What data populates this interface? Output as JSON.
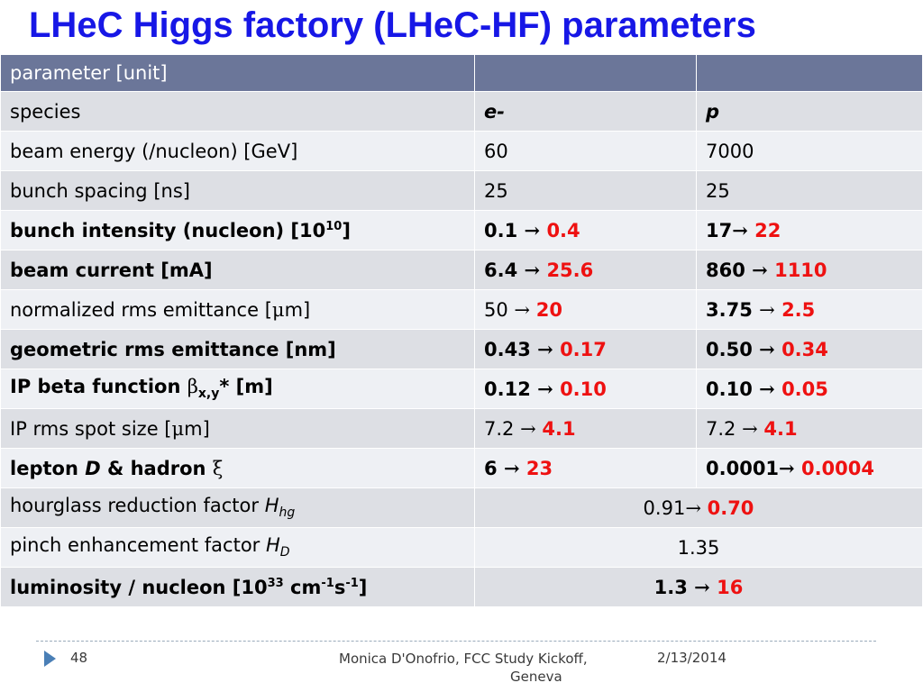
{
  "title": "LHeC Higgs factory (LHeC-HF) parameters",
  "table": {
    "header": {
      "col1": "parameter [unit]",
      "col2": "",
      "col3": ""
    },
    "rows": {
      "species": {
        "label": "species",
        "e": "e-",
        "p": "p"
      },
      "beam_energy": {
        "label": "beam energy (/nucleon) [GeV]",
        "e": "60",
        "p": "7000"
      },
      "bunch_spacing": {
        "label": "bunch spacing [ns]",
        "e": "25",
        "p": "25"
      },
      "bunch_intensity": {
        "label": "bunch intensity (nucleon) [10",
        "label_sup": "10",
        "label_end": "]",
        "e_from": "0.1",
        "e_to": "0.4",
        "p_from": "17",
        "p_to": "22"
      },
      "beam_current": {
        "label": "beam current [mA]",
        "e_from": "6.4",
        "e_to": "25.6",
        "p_from": "860",
        "p_to": "1110"
      },
      "norm_emittance": {
        "label": "normalized rms emittance [",
        "label_unit": "μ",
        "label_end": "m]",
        "e_from": "50",
        "e_to": "20",
        "p_from": "3.75",
        "p_to": "2.5"
      },
      "geom_emittance": {
        "label": "geometric rms emittance [nm]",
        "e_from": "0.43",
        "e_to": "0.17",
        "p_from": "0.50",
        "p_to": "0.34"
      },
      "ip_beta": {
        "label": "IP beta function ",
        "label_sym": "β",
        "label_sub": "x,y",
        "label_end": "* [m]",
        "e_from": "0.12",
        "e_to": "0.10",
        "p_from": "0.10",
        "p_to": "0.05"
      },
      "ip_spot": {
        "label": "IP rms spot size [",
        "label_unit": "μ",
        "label_end": "m]",
        "e_from": "7.2",
        "e_to": "4.1",
        "p_from": "7.2",
        "p_to": "4.1"
      },
      "lepton_hadron": {
        "label": "lepton ",
        "label_d": "D",
        "label_mid": " & hadron ",
        "label_xi": "ξ",
        "e_from": "6",
        "e_to": "23",
        "p_from": "0.0001",
        "p_to": "0.0004"
      },
      "hourglass": {
        "label": "hourglass reduction factor ",
        "label_h": "H",
        "label_sub": "hg",
        "from": "0.91",
        "to": "0.70"
      },
      "pinch": {
        "label": "pinch enhancement factor ",
        "label_h": "H",
        "label_sub": "D",
        "value": "1.35"
      },
      "luminosity": {
        "label": "luminosity / nucleon [10",
        "label_sup1": "33",
        "label_mid": " cm",
        "label_sup2": "-1",
        "label_s": "s",
        "label_sup3": "-1",
        "label_end": "]",
        "from": "1.3",
        "to": "16"
      }
    },
    "arrow": "→"
  },
  "footer": {
    "page_number": "48",
    "author_line1": "Monica D'Onofrio, FCC Study Kickoff,",
    "author_line2": "Geneva",
    "date": "2/13/2014"
  },
  "colors": {
    "title": "#1717e6",
    "header_bg": "#6b7699",
    "highlight": "#ee1111",
    "footer_icon": "#4a7fb6"
  },
  "icons": {
    "footer_marker": "triangle-right-icon"
  }
}
